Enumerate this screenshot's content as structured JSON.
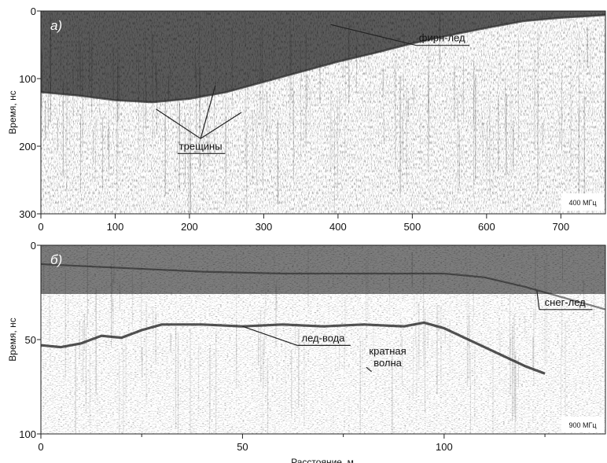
{
  "chart_data": [
    {
      "type": "heatmap",
      "panel_label": "а)",
      "frequency_label": "400 МГц",
      "xlabel": "",
      "ylabel": "Время, нс",
      "xlim": [
        0,
        760
      ],
      "ylim": [
        0,
        300
      ],
      "y_inverted": true,
      "x_ticks": [
        "0",
        "100",
        "200",
        "300",
        "400",
        "500",
        "600",
        "700"
      ],
      "x_tick_values": [
        0,
        100,
        200,
        300,
        400,
        500,
        600,
        700
      ],
      "y_ticks": [
        "0",
        "100",
        "200",
        "300"
      ],
      "y_tick_values": [
        0,
        100,
        200,
        300
      ],
      "interface": {
        "name": "фирн-лед",
        "x": [
          0,
          50,
          100,
          150,
          200,
          250,
          300,
          350,
          400,
          450,
          500,
          550,
          600,
          650,
          700,
          760
        ],
        "y": [
          120,
          125,
          132,
          135,
          130,
          120,
          105,
          90,
          75,
          62,
          48,
          36,
          25,
          15,
          10,
          6
        ]
      },
      "annotations": [
        {
          "text": "фирн-лед",
          "x": 540,
          "y": 45,
          "points_to": [
            [
              390,
              20
            ]
          ]
        },
        {
          "text": "трещины",
          "x": 215,
          "y": 205,
          "points_to": [
            [
              155,
              145
            ],
            [
              235,
              110
            ],
            [
              270,
              150
            ]
          ]
        }
      ]
    },
    {
      "type": "heatmap",
      "panel_label": "б)",
      "frequency_label": "900 МГц",
      "xlabel": "Расстояние, м",
      "ylabel": "Время, нс",
      "xlim": [
        0,
        140
      ],
      "ylim": [
        0,
        100
      ],
      "y_inverted": true,
      "x_ticks": [
        "0",
        "50",
        "100"
      ],
      "x_tick_values": [
        0,
        50,
        100
      ],
      "x_minor_ticks": [
        25,
        75,
        125
      ],
      "y_ticks": [
        "0",
        "50",
        "100"
      ],
      "y_tick_values": [
        0,
        50,
        100
      ],
      "layers": [
        {
          "name": "снег-лед",
          "x": [
            0,
            20,
            40,
            60,
            80,
            100,
            110,
            120,
            130,
            140
          ],
          "y": [
            10,
            12,
            14,
            15,
            15,
            15,
            17,
            22,
            28,
            34
          ]
        },
        {
          "name": "лед-вода",
          "x": [
            0,
            5,
            10,
            15,
            20,
            25,
            30,
            40,
            50,
            60,
            70,
            80,
            90,
            95,
            100,
            105,
            110,
            115,
            120,
            125
          ],
          "y": [
            53,
            54,
            52,
            48,
            49,
            45,
            42,
            42,
            43,
            42,
            43,
            42,
            43,
            41,
            44,
            49,
            54,
            59,
            64,
            68
          ]
        }
      ],
      "annotations": [
        {
          "text": "лед-вода",
          "x": 70,
          "y": 51,
          "points_to": [
            [
              50,
              43
            ]
          ]
        },
        {
          "text": "кратная волна",
          "lines": [
            "кратная",
            "волна"
          ],
          "x": 86,
          "y": 58,
          "points_to": [
            [
              82,
              67
            ]
          ]
        },
        {
          "text": "снег-лед",
          "x": 130,
          "y": 32,
          "points_to": [
            [
              123,
              24
            ]
          ]
        }
      ]
    }
  ]
}
